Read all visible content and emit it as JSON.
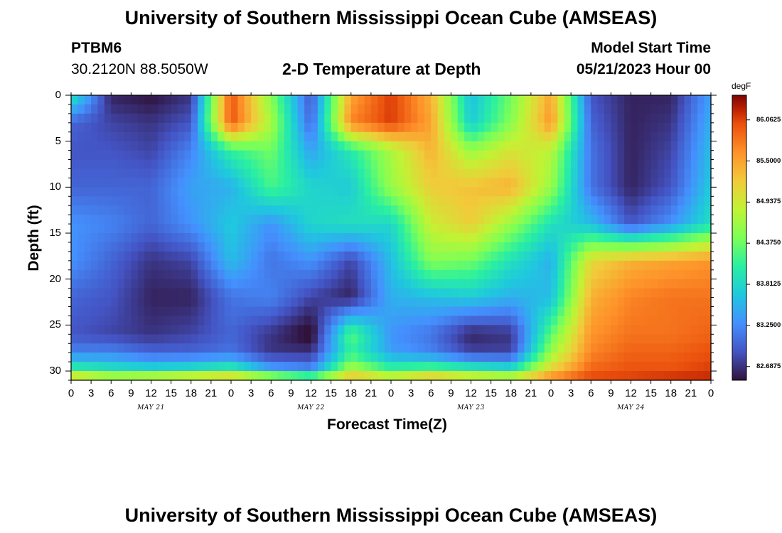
{
  "header": {
    "title": "University of Southern Mississippi Ocean Cube (AMSEAS)",
    "station": "PTBM6",
    "coords": "30.2120N  88.5050W",
    "subtitle": "2-D Temperature at Depth",
    "model_label": "Model Start Time",
    "model_time": "05/21/2023 Hour 00"
  },
  "footer": {
    "title": "University of Southern Mississippi Ocean Cube (AMSEAS)"
  },
  "colorbar": {
    "unit": "degF",
    "labels": [
      "86.0625",
      "85.5000",
      "84.9375",
      "84.3750",
      "83.8125",
      "83.2500",
      "82.6875"
    ],
    "range": [
      82.5,
      86.4
    ]
  },
  "chart_data": {
    "type": "heatmap",
    "title": "2-D Temperature at Depth",
    "xlabel": "Forecast Time(Z)",
    "ylabel": "Depth (ft)",
    "x_tick_labels": [
      "0",
      "3",
      "6",
      "9",
      "12",
      "15",
      "18",
      "21",
      "0",
      "3",
      "6",
      "9",
      "12",
      "15",
      "18",
      "21",
      "0",
      "3",
      "6",
      "9",
      "12",
      "15",
      "18",
      "21",
      "0",
      "3",
      "6",
      "9",
      "12",
      "15",
      "18",
      "21",
      "0"
    ],
    "date_labels": [
      "MAY 21",
      "MAY 22",
      "MAY 23",
      "MAY 24"
    ],
    "y_ticks": [
      0,
      5,
      10,
      15,
      20,
      25,
      30
    ],
    "xlim_hours": [
      0,
      96
    ],
    "ylim_ft": [
      0,
      31
    ],
    "colormap": "turbo",
    "value_unit": "degF",
    "anchor_depths_ft": [
      0,
      3,
      6,
      10,
      14,
      18,
      22,
      26,
      28,
      30,
      31
    ],
    "anchor_hours": [
      0,
      6,
      12,
      18,
      24,
      30,
      36,
      42,
      48,
      54,
      60,
      66,
      72,
      78,
      84,
      90,
      96
    ],
    "temperature_grid": [
      [
        84.0,
        82.6,
        82.5,
        82.7,
        86.0,
        84.5,
        82.9,
        85.5,
        86.1,
        85.4,
        83.6,
        84.4,
        85.5,
        82.9,
        82.6,
        82.6,
        83.4
      ],
      [
        83.0,
        82.8,
        82.7,
        82.9,
        86.0,
        84.7,
        83.0,
        85.7,
        86.1,
        85.5,
        83.7,
        84.5,
        85.6,
        83.0,
        82.6,
        82.7,
        83.5
      ],
      [
        82.9,
        82.9,
        82.8,
        83.2,
        84.1,
        84.4,
        83.4,
        84.0,
        84.7,
        85.4,
        84.6,
        85.0,
        84.8,
        83.1,
        82.6,
        82.8,
        83.6
      ],
      [
        83.0,
        83.0,
        83.0,
        83.4,
        83.5,
        84.2,
        83.8,
        83.7,
        84.6,
        85.2,
        85.3,
        85.4,
        84.6,
        83.1,
        82.6,
        82.9,
        83.7
      ],
      [
        83.3,
        83.2,
        83.0,
        83.3,
        83.7,
        83.3,
        83.8,
        83.9,
        83.8,
        84.9,
        85.2,
        84.6,
        83.9,
        83.6,
        82.9,
        83.3,
        83.9
      ],
      [
        83.3,
        83.0,
        82.7,
        82.8,
        83.6,
        83.1,
        83.3,
        82.8,
        83.6,
        84.5,
        84.4,
        83.9,
        83.5,
        85.1,
        85.4,
        85.5,
        85.6
      ],
      [
        83.0,
        82.9,
        82.6,
        82.6,
        83.1,
        83.2,
        82.8,
        82.6,
        83.5,
        83.6,
        83.7,
        83.5,
        83.6,
        85.4,
        85.7,
        85.8,
        85.8
      ],
      [
        82.9,
        82.8,
        82.7,
        82.8,
        83.0,
        82.7,
        82.4,
        84.3,
        83.3,
        83.1,
        82.6,
        82.7,
        84.3,
        85.6,
        85.8,
        85.8,
        85.9
      ],
      [
        83.2,
        83.2,
        83.0,
        83.0,
        83.1,
        82.7,
        82.7,
        84.1,
        83.4,
        83.2,
        82.8,
        82.8,
        84.6,
        85.7,
        85.9,
        85.9,
        86.0
      ],
      [
        84.2,
        84.0,
        83.9,
        84.0,
        84.2,
        83.5,
        83.3,
        84.8,
        84.2,
        84.4,
        84.2,
        84.0,
        85.2,
        85.9,
        86.0,
        86.0,
        86.1
      ],
      [
        85.6,
        85.2,
        85.4,
        85.6,
        85.7,
        85.3,
        84.8,
        85.5,
        85.3,
        85.7,
        85.4,
        85.3,
        85.8,
        86.1,
        86.1,
        86.2,
        86.2
      ]
    ]
  }
}
